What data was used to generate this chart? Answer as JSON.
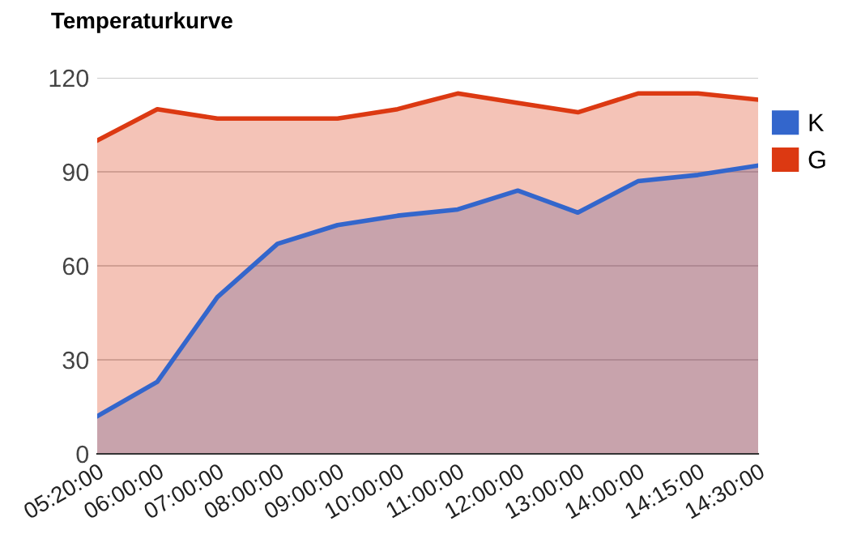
{
  "chart_data": {
    "type": "area",
    "title": "Temperaturkurve",
    "categories": [
      "05:20:00",
      "06:00:00",
      "07:00:00",
      "08:00:00",
      "09:00:00",
      "10:00:00",
      "11:00:00",
      "12:00:00",
      "13:00:00",
      "14:00:00",
      "14:15:00",
      "14:30:00"
    ],
    "series": [
      {
        "name": "K",
        "color": "#3366cc",
        "values": [
          12,
          23,
          50,
          67,
          73,
          76,
          78,
          84,
          77,
          87,
          89,
          92
        ]
      },
      {
        "name": "G",
        "color": "#dc3912",
        "values": [
          100,
          110,
          107,
          107,
          107,
          110,
          115,
          112,
          109,
          115,
          115,
          113
        ]
      }
    ],
    "ylim": [
      0,
      120
    ],
    "yticks": [
      0,
      30,
      60,
      90,
      120
    ],
    "grid": "y",
    "legend": "right"
  }
}
